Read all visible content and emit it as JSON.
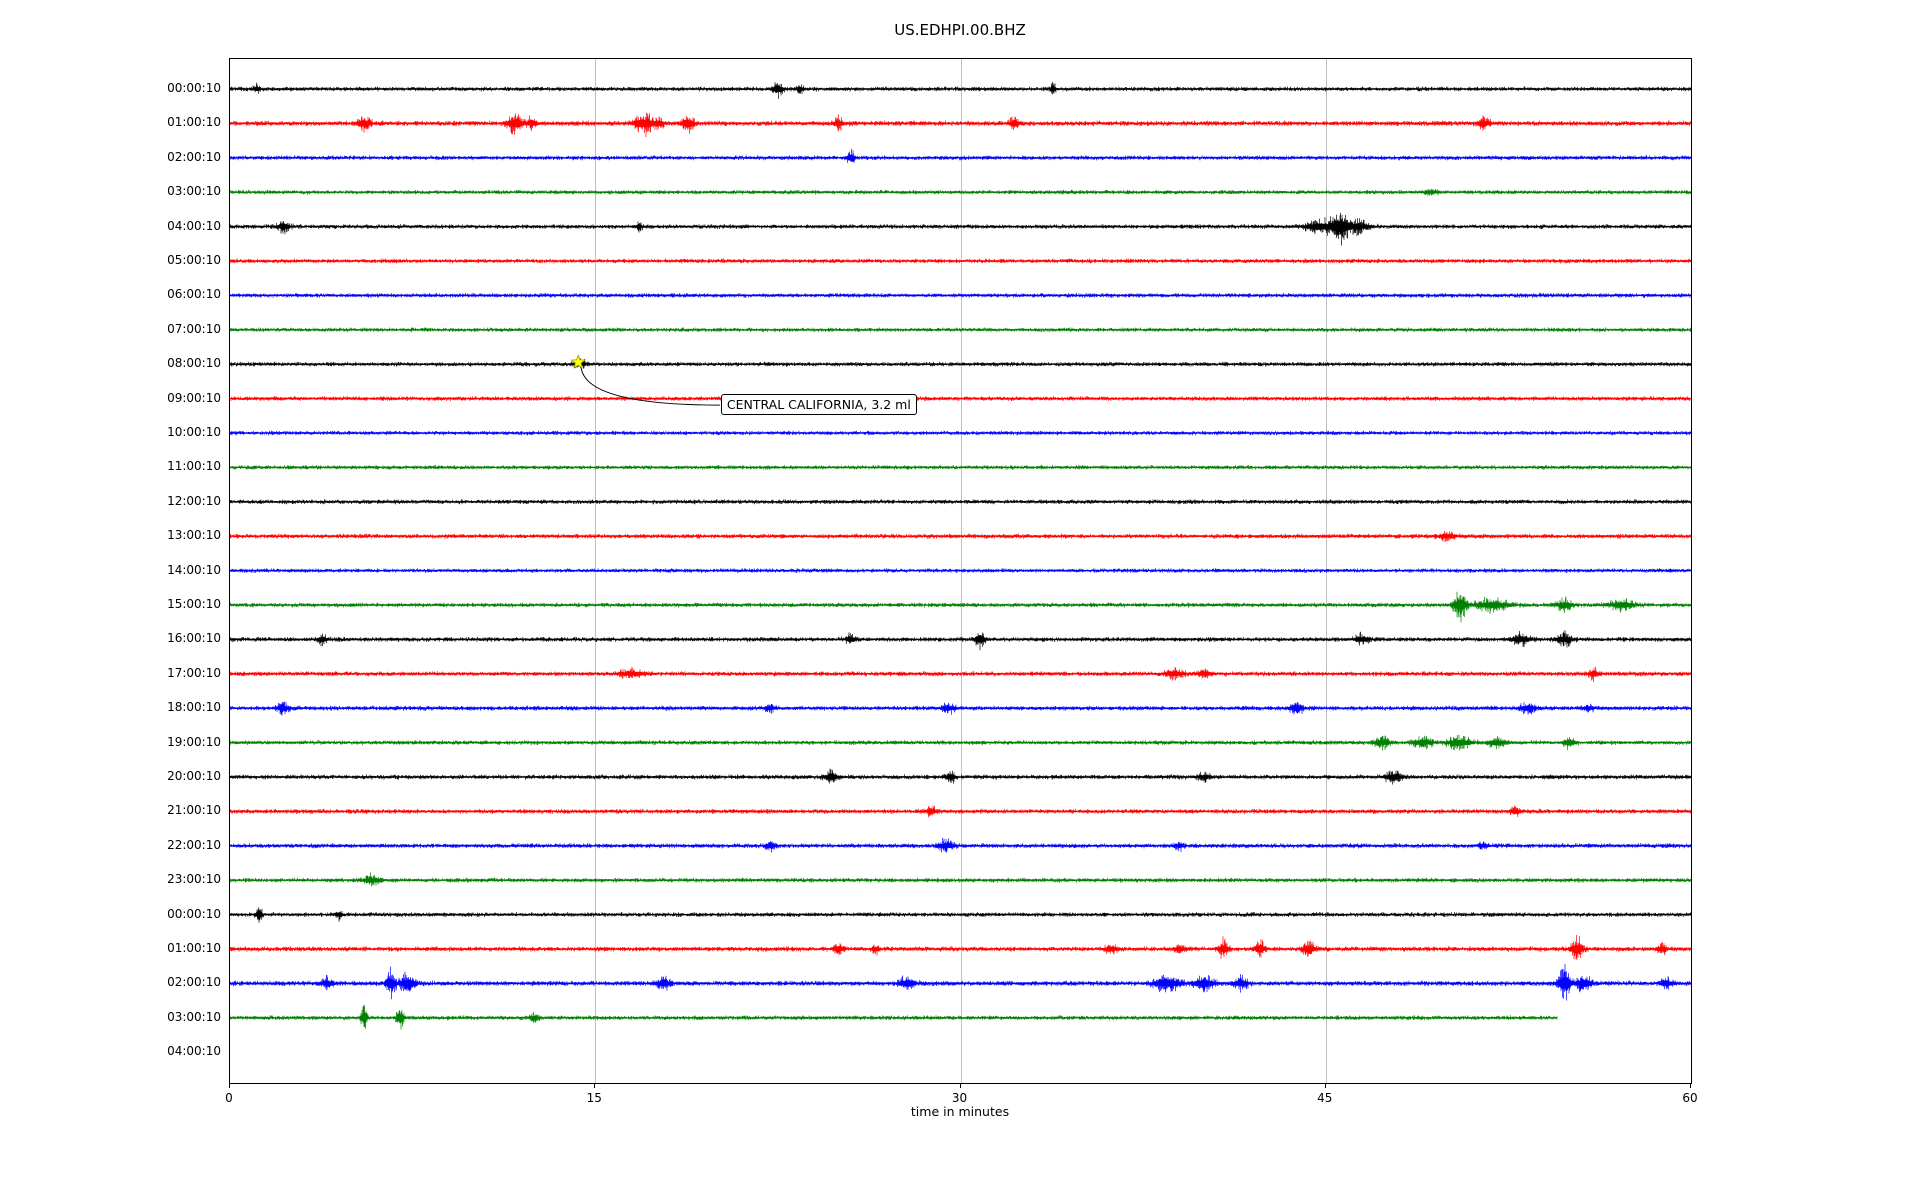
{
  "title": "US.EDHPI.00.BHZ",
  "axes": {
    "xlabel": "time in minutes",
    "x_ticks": [
      {
        "value": 0,
        "label": "0"
      },
      {
        "value": 15,
        "label": "15"
      },
      {
        "value": 30,
        "label": "30"
      },
      {
        "value": 45,
        "label": "45"
      },
      {
        "value": 60,
        "label": "60"
      }
    ]
  },
  "annotation": {
    "text": "CENTRAL CALIFORNIA, 3.2 ml",
    "marker_minute": 14.3,
    "marker_row": 8,
    "box_minute": 20.2,
    "box_row": 9,
    "box_dy": -4
  },
  "palette": {
    "black": "#000000",
    "red": "#ff0000",
    "blue": "#0000ff",
    "green": "#008000",
    "grid": "#c0c0c0",
    "marker_fill": "#ffff00",
    "marker_edge": "#a0a000",
    "connector": "#000000"
  },
  "chart_data": {
    "type": "line",
    "subtype": "seismogram-dayplot",
    "title": "US.EDHPI.00.BHZ",
    "xlabel": "time in minutes",
    "xlim": [
      0,
      60
    ],
    "x_ticks": [
      0,
      15,
      30,
      45,
      60
    ],
    "grid": {
      "vertical_lines_minutes": [
        15,
        30,
        45
      ]
    },
    "legend": "none",
    "row_labels": [
      "00:00:10",
      "01:00:10",
      "02:00:10",
      "03:00:10",
      "04:00:10",
      "05:00:10",
      "06:00:10",
      "07:00:10",
      "08:00:10",
      "09:00:10",
      "10:00:10",
      "11:00:10",
      "12:00:10",
      "13:00:10",
      "14:00:10",
      "15:00:10",
      "16:00:10",
      "17:00:10",
      "18:00:10",
      "19:00:10",
      "20:00:10",
      "21:00:10",
      "22:00:10",
      "23:00:10",
      "00:00:10",
      "01:00:10",
      "02:00:10",
      "03:00:10",
      "04:00:10"
    ],
    "event_marker": {
      "row_index": 8,
      "row_label": "08:00:10",
      "minute": 14.3,
      "text": "CENTRAL CALIFORNIA, 3.2 ml"
    },
    "traces": [
      {
        "label": "00:00:10",
        "color": "black",
        "base_amp": 1.0,
        "end_minute": 60,
        "events": [
          [
            1.1,
            6,
            0.2
          ],
          [
            22.5,
            11,
            0.3
          ],
          [
            23.4,
            6,
            0.2
          ],
          [
            33.8,
            7,
            0.15
          ]
        ]
      },
      {
        "label": "01:00:10",
        "color": "red",
        "base_amp": 1.15,
        "end_minute": 60,
        "events": [
          [
            5.5,
            10,
            0.4
          ],
          [
            11.7,
            12,
            0.5
          ],
          [
            12.4,
            7,
            0.3
          ],
          [
            17.0,
            13,
            0.6
          ],
          [
            17.6,
            8,
            0.3
          ],
          [
            18.8,
            10,
            0.4
          ],
          [
            25.0,
            8,
            0.3
          ],
          [
            32.2,
            7,
            0.3
          ],
          [
            51.5,
            7,
            0.4
          ]
        ]
      },
      {
        "label": "02:00:10",
        "color": "blue",
        "base_amp": 1.0,
        "end_minute": 60,
        "events": [
          [
            25.5,
            10,
            0.25
          ]
        ]
      },
      {
        "label": "03:00:10",
        "color": "green",
        "base_amp": 0.95,
        "end_minute": 60,
        "events": [
          [
            49.3,
            4,
            0.4
          ]
        ]
      },
      {
        "label": "04:00:10",
        "color": "black",
        "base_amp": 1.0,
        "end_minute": 60,
        "events": [
          [
            2.2,
            7,
            0.4
          ],
          [
            16.8,
            6,
            0.2
          ],
          [
            44.8,
            9,
            1.0
          ],
          [
            45.6,
            19,
            0.5
          ],
          [
            46.3,
            8,
            0.8
          ]
        ]
      },
      {
        "label": "05:00:10",
        "color": "red",
        "base_amp": 1.0,
        "end_minute": 60,
        "events": []
      },
      {
        "label": "06:00:10",
        "color": "blue",
        "base_amp": 1.0,
        "end_minute": 60,
        "events": []
      },
      {
        "label": "07:00:10",
        "color": "green",
        "base_amp": 0.95,
        "end_minute": 60,
        "events": []
      },
      {
        "label": "08:00:10",
        "color": "black",
        "base_amp": 1.0,
        "end_minute": 60,
        "events": [
          [
            14.4,
            4,
            0.5
          ]
        ]
      },
      {
        "label": "09:00:10",
        "color": "red",
        "base_amp": 1.0,
        "end_minute": 60,
        "events": []
      },
      {
        "label": "10:00:10",
        "color": "blue",
        "base_amp": 0.95,
        "end_minute": 60,
        "events": []
      },
      {
        "label": "11:00:10",
        "color": "green",
        "base_amp": 0.95,
        "end_minute": 60,
        "events": []
      },
      {
        "label": "12:00:10",
        "color": "black",
        "base_amp": 1.0,
        "end_minute": 60,
        "events": []
      },
      {
        "label": "13:00:10",
        "color": "red",
        "base_amp": 1.05,
        "end_minute": 60,
        "events": [
          [
            50.0,
            5,
            0.5
          ]
        ]
      },
      {
        "label": "14:00:10",
        "color": "blue",
        "base_amp": 0.95,
        "end_minute": 60,
        "events": []
      },
      {
        "label": "15:00:10",
        "color": "green",
        "base_amp": 1.0,
        "end_minute": 60,
        "events": [
          [
            50.5,
            17,
            0.4
          ],
          [
            51.8,
            7,
            1.2
          ],
          [
            54.8,
            8,
            0.5
          ],
          [
            57.2,
            7,
            0.8
          ]
        ]
      },
      {
        "label": "16:00:10",
        "color": "black",
        "base_amp": 1.05,
        "end_minute": 60,
        "events": [
          [
            3.8,
            6,
            0.3
          ],
          [
            25.5,
            6,
            0.3
          ],
          [
            30.8,
            11,
            0.3
          ],
          [
            46.5,
            6,
            0.5
          ],
          [
            53.0,
            7,
            0.6
          ],
          [
            54.8,
            8,
            0.5
          ]
        ]
      },
      {
        "label": "17:00:10",
        "color": "red",
        "base_amp": 1.05,
        "end_minute": 60,
        "events": [
          [
            16.5,
            5,
            0.8
          ],
          [
            38.8,
            6,
            0.6
          ],
          [
            40.0,
            5,
            0.5
          ],
          [
            56.0,
            7,
            0.3
          ]
        ]
      },
      {
        "label": "18:00:10",
        "color": "blue",
        "base_amp": 1.05,
        "end_minute": 60,
        "events": [
          [
            2.2,
            6,
            0.4
          ],
          [
            22.2,
            5,
            0.3
          ],
          [
            29.5,
            6,
            0.4
          ],
          [
            43.8,
            8,
            0.4
          ],
          [
            53.3,
            7,
            0.5
          ],
          [
            55.8,
            5,
            0.3
          ]
        ]
      },
      {
        "label": "19:00:10",
        "color": "green",
        "base_amp": 1.0,
        "end_minute": 60,
        "events": [
          [
            47.3,
            7,
            0.5
          ],
          [
            49.0,
            7,
            0.6
          ],
          [
            50.5,
            8,
            0.8
          ],
          [
            52.0,
            6,
            0.6
          ],
          [
            55.0,
            7,
            0.4
          ]
        ]
      },
      {
        "label": "20:00:10",
        "color": "black",
        "base_amp": 1.05,
        "end_minute": 60,
        "events": [
          [
            24.7,
            8,
            0.4
          ],
          [
            29.6,
            8,
            0.3
          ],
          [
            40.0,
            5,
            0.4
          ],
          [
            47.8,
            8,
            0.5
          ]
        ]
      },
      {
        "label": "21:00:10",
        "color": "red",
        "base_amp": 1.05,
        "end_minute": 60,
        "events": [
          [
            28.8,
            7,
            0.3
          ],
          [
            52.8,
            6,
            0.3
          ]
        ]
      },
      {
        "label": "22:00:10",
        "color": "blue",
        "base_amp": 1.05,
        "end_minute": 60,
        "events": [
          [
            22.2,
            6,
            0.3
          ],
          [
            29.4,
            7,
            0.5
          ],
          [
            39.0,
            5,
            0.3
          ],
          [
            51.5,
            5,
            0.3
          ]
        ]
      },
      {
        "label": "23:00:10",
        "color": "green",
        "base_amp": 1.0,
        "end_minute": 60,
        "events": [
          [
            5.8,
            6,
            0.5
          ]
        ]
      },
      {
        "label": "00:00:10",
        "color": "black",
        "base_amp": 1.0,
        "end_minute": 60,
        "events": [
          [
            1.2,
            11,
            0.2
          ],
          [
            4.5,
            6,
            0.2
          ]
        ]
      },
      {
        "label": "01:00:10",
        "color": "red",
        "base_amp": 1.1,
        "end_minute": 60,
        "events": [
          [
            25.0,
            8,
            0.3
          ],
          [
            26.5,
            6,
            0.2
          ],
          [
            36.2,
            6,
            0.4
          ],
          [
            39.0,
            6,
            0.3
          ],
          [
            40.8,
            11,
            0.3
          ],
          [
            42.3,
            11,
            0.3
          ],
          [
            44.3,
            8,
            0.4
          ],
          [
            55.3,
            14,
            0.4
          ],
          [
            58.8,
            6,
            0.3
          ]
        ]
      },
      {
        "label": "02:00:10",
        "color": "blue",
        "base_amp": 1.15,
        "end_minute": 60,
        "events": [
          [
            4.0,
            7,
            0.4
          ],
          [
            6.6,
            17,
            0.3
          ],
          [
            7.3,
            12,
            0.5
          ],
          [
            17.8,
            8,
            0.4
          ],
          [
            27.8,
            8,
            0.5
          ],
          [
            38.5,
            10,
            0.8
          ],
          [
            40.0,
            10,
            0.6
          ],
          [
            41.5,
            7,
            0.5
          ],
          [
            54.8,
            19,
            0.4
          ],
          [
            55.6,
            10,
            0.5
          ],
          [
            59.0,
            6,
            0.4
          ]
        ]
      },
      {
        "label": "03:00:10",
        "color": "green",
        "base_amp": 1.0,
        "end_minute": 54.5,
        "events": [
          [
            5.5,
            14,
            0.2
          ],
          [
            7.0,
            12,
            0.25
          ],
          [
            12.5,
            5,
            0.3
          ]
        ]
      }
    ]
  }
}
